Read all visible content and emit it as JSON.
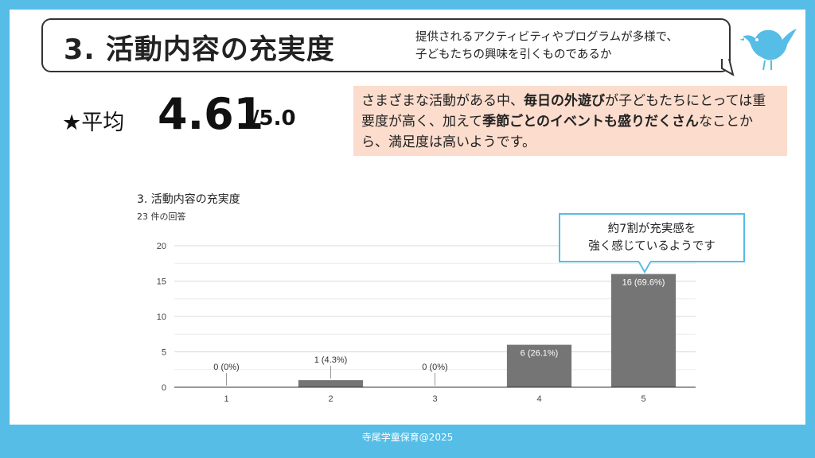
{
  "header": {
    "title": "3. 活動内容の充実度",
    "subtitle_line1": "提供されるアクティビティやプログラムが多様で、",
    "subtitle_line2": "子どもたちの興味を引くものであるか"
  },
  "average": {
    "label": "★平均",
    "value": "4.61",
    "max": "/5.0"
  },
  "comment": {
    "p1": "さまざまな活動がある中、",
    "b1": "毎日の外遊び",
    "p2": "が子どもたちにとっては重要度が高く、加えて",
    "b2": "季節ごとのイベントも盛りだくさん",
    "p3": "なことから、満足度は高いようです。"
  },
  "chart": {
    "title": "3. 活動内容の充実度",
    "responses": "23 件の回答"
  },
  "callout": {
    "line1": "約7割が充実感を",
    "line2": "強く感じているようです"
  },
  "footer": {
    "text": "寺尾学童保育@2025"
  },
  "colors": {
    "background": "#55bde6",
    "bar": "#757575",
    "comment_bg": "#fbdccd",
    "callout_border": "#55bde6"
  },
  "chart_data": {
    "type": "bar",
    "title": "3. 活動内容の充実度",
    "categories": [
      "1",
      "2",
      "3",
      "4",
      "5"
    ],
    "values": [
      0,
      1,
      0,
      6,
      16
    ],
    "data_labels": [
      "0 (0%)",
      "1 (4.3%)",
      "0 (0%)",
      "6 (26.1%)",
      "16 (69.6%)"
    ],
    "yticks": [
      "0",
      "5",
      "10",
      "15",
      "20"
    ],
    "ylim": [
      0,
      20
    ],
    "grid": true
  }
}
